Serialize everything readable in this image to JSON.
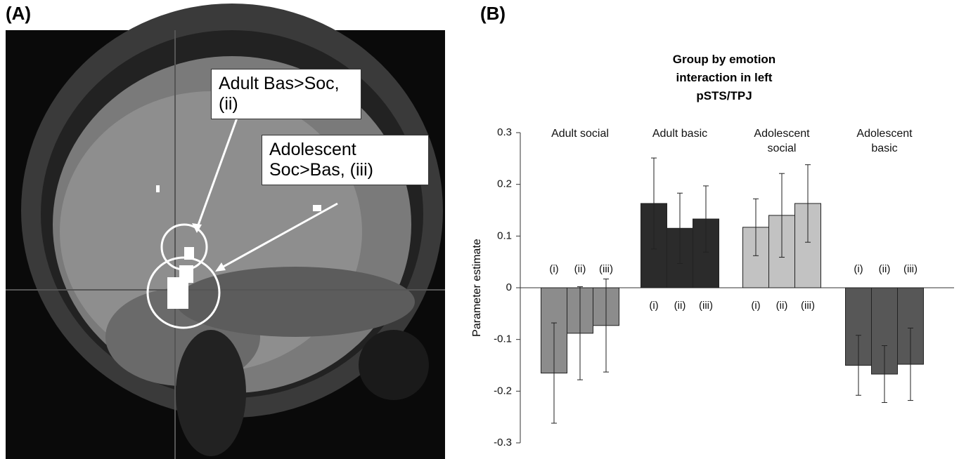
{
  "panels": [
    "(A)",
    "(B)"
  ],
  "annotations": [
    "Adult Bas>Soc, (ii)",
    "Adolescent Soc>Bas, (iii)"
  ],
  "chart_data": {
    "type": "bar",
    "title": "Group by emotion interaction in left pSTS/TPJ",
    "y_label": "Parameter estimate",
    "bar_labels": [
      "(i)",
      "(ii)",
      "(iii)"
    ],
    "groups": [
      {
        "name": "Adult social",
        "color": "#8c8c8c",
        "values": [
          -0.165,
          -0.088,
          -0.073
        ],
        "errors": [
          0.097,
          0.09,
          0.09
        ]
      },
      {
        "name": "Adult basic",
        "color": "#2b2b2b",
        "values": [
          0.163,
          0.115,
          0.133
        ],
        "errors": [
          0.088,
          0.068,
          0.064
        ]
      },
      {
        "name": "Adolescent social",
        "color": "#c2c2c2",
        "values": [
          0.117,
          0.14,
          0.163
        ],
        "errors": [
          0.055,
          0.081,
          0.075
        ]
      },
      {
        "name": "Adolescent basic",
        "color": "#575757",
        "values": [
          -0.15,
          -0.167,
          -0.148
        ],
        "errors": [
          0.058,
          0.055,
          0.07
        ]
      }
    ],
    "ylim": [
      -0.3,
      0.3
    ],
    "yticks": [
      0.3,
      0.2,
      0.1,
      0,
      -0.1,
      -0.2,
      -0.3
    ]
  }
}
